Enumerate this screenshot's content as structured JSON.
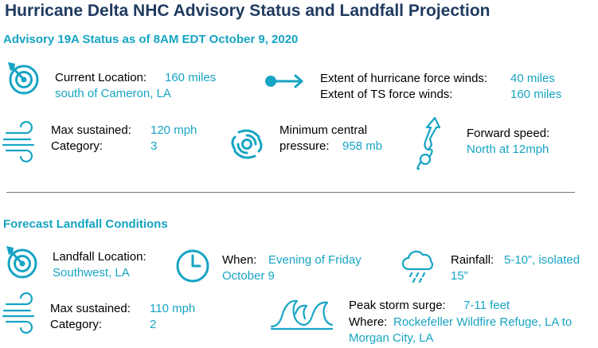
{
  "title": "Hurricane Delta NHC Advisory Status and Landfall Projection",
  "advisory": {
    "heading": "Advisory 19A Status as of 8AM EDT October 9, 2020",
    "location_label": "Current Location:",
    "location_value_1": "160 miles",
    "location_value_2": "south of Cameron, LA",
    "hurricane_winds_label": "Extent of hurricane force winds:",
    "hurricane_winds_value": "40 miles",
    "ts_winds_label": "Extent of TS force winds:",
    "ts_winds_value": "160 miles",
    "max_sustained_label": "Max sustained:",
    "max_sustained_value": "120 mph",
    "category_label": "Category:",
    "category_value": "3",
    "pressure_label_1": "Minimum central",
    "pressure_label_2": "pressure:",
    "pressure_value": "958 mb",
    "forward_label": "Forward speed:",
    "forward_value": "North at 12mph"
  },
  "forecast": {
    "heading": "Forecast Landfall Conditions",
    "landfall_label": "Landfall Location:",
    "landfall_value": "Southwest, LA",
    "when_label": "When:",
    "when_value_1": "Evening of Friday",
    "when_value_2": "October 9",
    "rainfall_label": "Rainfall:",
    "rainfall_value_1": "5-10”, isolated",
    "rainfall_value_2": "15”",
    "max_sustained_label": "Max sustained:",
    "max_sustained_value": "110 mph",
    "category_label": "Category:",
    "category_value": "2",
    "surge_label": "Peak storm surge:",
    "surge_value": "7-11 feet",
    "where_label": "Where:",
    "where_value_1": "Rockefeller Wildfire Refuge, LA to",
    "where_value_2": "Morgan City, LA"
  },
  "colors": {
    "title": "#1f3a5f",
    "accent": "#17a4c4",
    "text": "#000000",
    "rule": "#777777"
  },
  "icons": [
    "target-icon",
    "arrow-right-icon",
    "wind-icon",
    "hurricane-icon",
    "track-arrow-icon",
    "clock-icon",
    "rain-cloud-icon",
    "waves-icon"
  ]
}
